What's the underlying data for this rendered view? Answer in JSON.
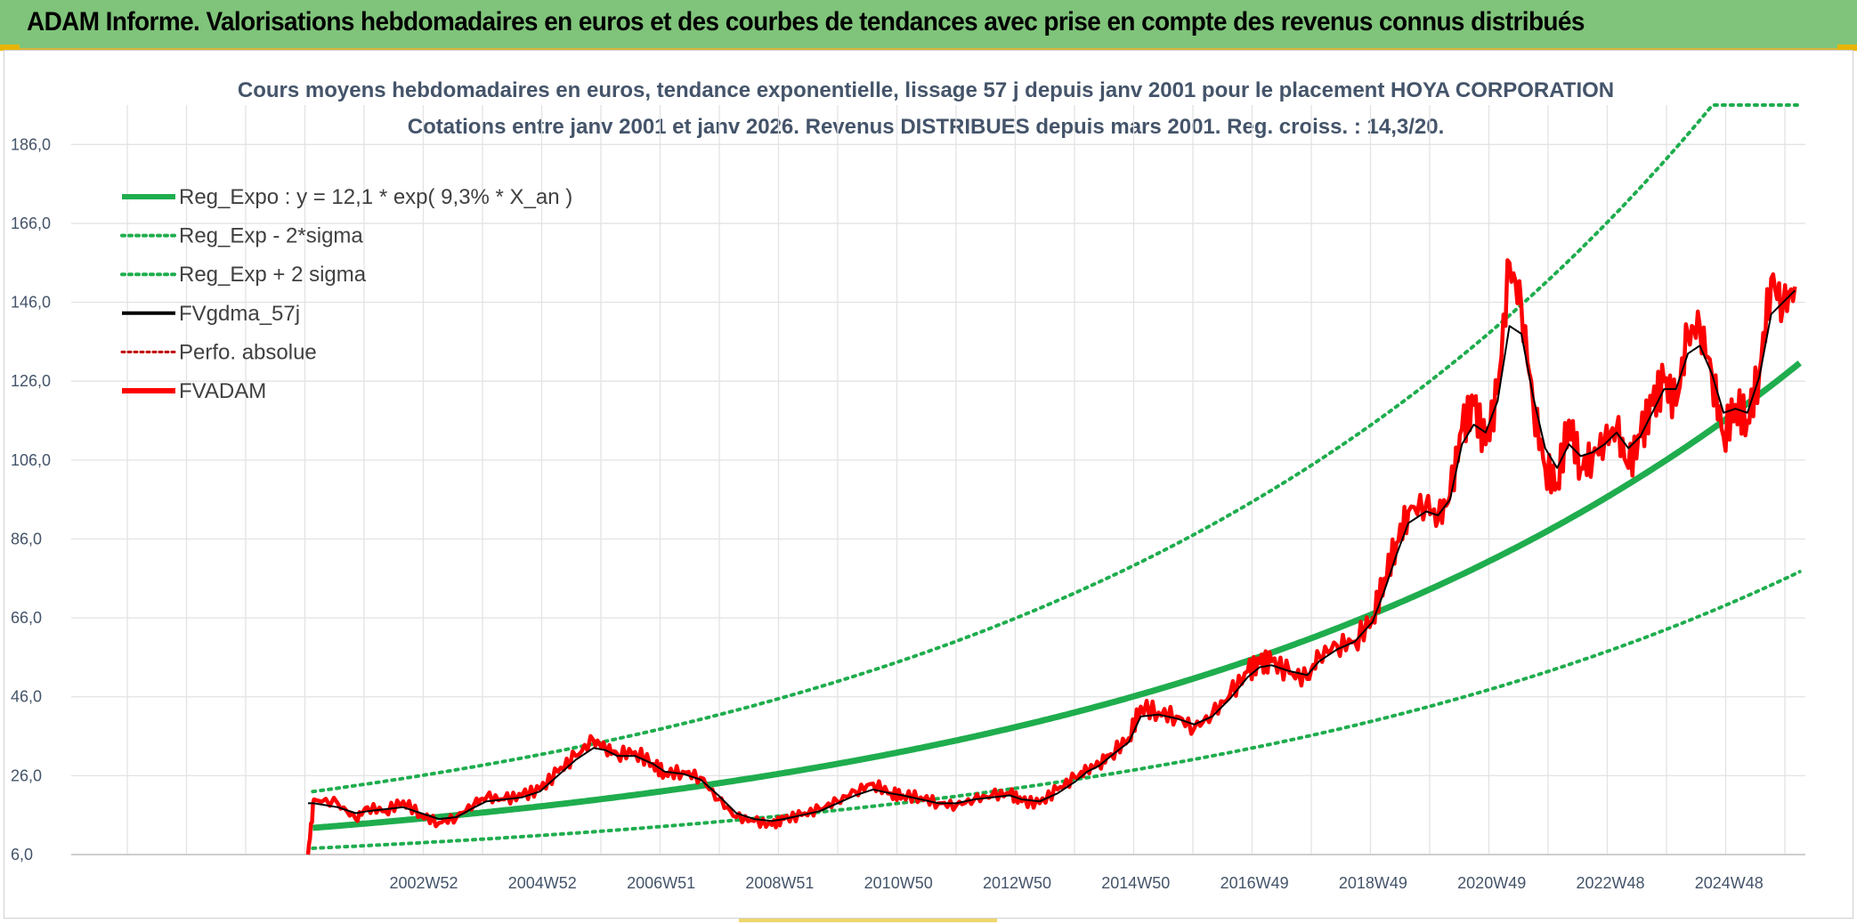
{
  "banner": {
    "title": "ADAM Informe. Valorisations hebdomadaires en euros et des courbes de tendances avec prise en compte des revenus connus distribués"
  },
  "colors": {
    "banner_bg": "#7fc47a",
    "reg_green": "#1fad4e",
    "smooth_black": "#000000",
    "price_red": "#ff0000",
    "axis_text": "#44546a"
  },
  "chart_data": {
    "type": "line",
    "title": "Cours moyens hebdomadaires en euros, tendance exponentielle, lissage 57 j depuis janv 2001 pour le placement HOYA CORPORATION",
    "subtitle": "Cotations entre janv 2001 et janv 2026. Revenus DISTRIBUES depuis mars 2001. Reg. croiss. : 14,3/20.",
    "xlabel": "",
    "ylabel": "",
    "ylim": [
      6,
      196
    ],
    "yticks": [
      "6,0",
      "26,0",
      "46,0",
      "66,0",
      "86,0",
      "106,0",
      "126,0",
      "146,0",
      "166,0",
      "186,0"
    ],
    "xticks": [
      "2002W52",
      "2004W52",
      "2006W51",
      "2008W51",
      "2010W50",
      "2012W50",
      "2014W50",
      "2016W49",
      "2018W49",
      "2020W49",
      "2022W48",
      "2024W48"
    ],
    "x_range_years": [
      2001.0,
      2026.1
    ],
    "grid": true,
    "legend_position": "top-left",
    "legend": [
      {
        "label": "Reg_Expo : y = 12,1 * exp( 9,3% *  X_an )",
        "style": "thick-solid",
        "color": "#1fad4e"
      },
      {
        "label": "Reg_Exp - 2*sigma",
        "style": "dotted",
        "color": "#1fad4e"
      },
      {
        "label": "Reg_Exp + 2 sigma",
        "style": "dotted",
        "color": "#1fad4e"
      },
      {
        "label": "FVgdma_57j",
        "style": "solid",
        "color": "#000000"
      },
      {
        "label": "Perfo. absolue",
        "style": "dotted",
        "color": "#c00000"
      },
      {
        "label": "FVADAM",
        "style": "thick-solid",
        "color": "#ff0000"
      }
    ],
    "regression": {
      "a": 12.1,
      "rate": 0.093,
      "upper_factor": 1.72,
      "lower_factor": 0.595,
      "cap": 196
    },
    "series": [
      {
        "name": "FVADAM",
        "x": [
          2001.0,
          2001.1,
          2001.5,
          2001.8,
          2002.0,
          2002.3,
          2002.6,
          2002.9,
          2003.2,
          2003.5,
          2003.8,
          2004.0,
          2004.3,
          2004.6,
          2004.9,
          2005.2,
          2005.5,
          2005.8,
          2006.0,
          2006.2,
          2006.5,
          2006.8,
          2007.0,
          2007.3,
          2007.6,
          2007.9,
          2008.2,
          2008.5,
          2008.8,
          2009.0,
          2009.3,
          2009.6,
          2009.9,
          2010.2,
          2010.5,
          2010.8,
          2011.0,
          2011.3,
          2011.6,
          2011.9,
          2012.2,
          2012.5,
          2012.8,
          2013.0,
          2013.3,
          2013.6,
          2013.9,
          2014.1,
          2014.3,
          2014.5,
          2014.8,
          2015.0,
          2015.3,
          2015.6,
          2015.9,
          2016.2,
          2016.5,
          2016.8,
          2017.0,
          2017.2,
          2017.5,
          2017.8,
          2018.0,
          2018.3,
          2018.6,
          2018.9,
          2019.1,
          2019.3,
          2019.5,
          2019.8,
          2020.0,
          2020.2,
          2020.4,
          2020.6,
          2020.8,
          2021.0,
          2021.2,
          2021.4,
          2021.6,
          2021.8,
          2022.0,
          2022.2,
          2022.4,
          2022.6,
          2022.8,
          2023.0,
          2023.2,
          2023.4,
          2023.6,
          2023.8,
          2024.0,
          2024.2,
          2024.4,
          2024.6,
          2024.8,
          2025.0,
          2025.2,
          2025.4,
          2025.6,
          2025.8,
          2026.0
        ],
        "values": [
          6.0,
          20.0,
          19.0,
          15.0,
          18.0,
          17.0,
          19.5,
          16.0,
          14.0,
          15.5,
          19.0,
          20.5,
          20.0,
          21.0,
          22.5,
          27.0,
          31.0,
          35.0,
          33.0,
          31.5,
          32.0,
          29.0,
          26.5,
          27.0,
          25.5,
          20.0,
          15.5,
          14.5,
          13.5,
          15.0,
          16.0,
          17.5,
          19.5,
          22.0,
          24.0,
          21.5,
          21.0,
          20.5,
          19.0,
          18.5,
          20.0,
          21.0,
          21.5,
          19.5,
          19.0,
          22.5,
          25.5,
          27.5,
          29.0,
          31.5,
          35.5,
          43.5,
          42.0,
          41.0,
          38.0,
          41.5,
          46.5,
          52.5,
          54.5,
          55.0,
          52.0,
          50.5,
          56.5,
          59.0,
          60.0,
          66.0,
          76.0,
          85.0,
          93.0,
          95.0,
          91.0,
          97.0,
          114.0,
          120.0,
          110.0,
          123.0,
          156.0,
          145.0,
          120.0,
          104.0,
          100.0,
          116.0,
          104.0,
          107.0,
          111.0,
          114.0,
          104.0,
          112.0,
          120.0,
          126.0,
          120.0,
          138.0,
          140.0,
          128.0,
          112.0,
          120.0,
          116.0,
          128.0,
          152.0,
          145.0,
          150.0
        ]
      },
      {
        "name": "FVgdma_57j",
        "x": [
          2001.0,
          2001.1,
          2001.5,
          2001.8,
          2002.0,
          2002.3,
          2002.6,
          2002.9,
          2003.2,
          2003.5,
          2003.8,
          2004.0,
          2004.3,
          2004.6,
          2004.9,
          2005.2,
          2005.5,
          2005.8,
          2006.0,
          2006.2,
          2006.5,
          2006.8,
          2007.0,
          2007.3,
          2007.6,
          2007.9,
          2008.2,
          2008.5,
          2008.8,
          2009.0,
          2009.3,
          2009.6,
          2009.9,
          2010.2,
          2010.5,
          2010.8,
          2011.0,
          2011.3,
          2011.6,
          2011.9,
          2012.2,
          2012.5,
          2012.8,
          2013.0,
          2013.3,
          2013.6,
          2013.9,
          2014.1,
          2014.3,
          2014.5,
          2014.8,
          2015.0,
          2015.3,
          2015.6,
          2015.9,
          2016.2,
          2016.5,
          2016.8,
          2017.0,
          2017.2,
          2017.5,
          2017.8,
          2018.0,
          2018.3,
          2018.6,
          2018.9,
          2019.1,
          2019.3,
          2019.5,
          2019.8,
          2020.0,
          2020.2,
          2020.4,
          2020.6,
          2020.8,
          2021.0,
          2021.2,
          2021.4,
          2021.6,
          2021.8,
          2022.0,
          2022.2,
          2022.4,
          2022.6,
          2022.8,
          2023.0,
          2023.2,
          2023.4,
          2023.6,
          2023.8,
          2024.0,
          2024.2,
          2024.4,
          2024.6,
          2024.8,
          2025.0,
          2025.2,
          2025.4,
          2025.6,
          2025.8,
          2026.0
        ],
        "values": [
          19.0,
          19.0,
          18.0,
          16.5,
          17.0,
          17.5,
          18.0,
          16.5,
          15.0,
          15.5,
          18.0,
          19.5,
          20.0,
          20.5,
          22.0,
          26.0,
          30.0,
          33.0,
          32.5,
          31.0,
          31.0,
          29.0,
          27.0,
          26.5,
          25.0,
          21.0,
          16.5,
          15.0,
          14.5,
          15.0,
          16.0,
          17.0,
          19.0,
          21.0,
          22.5,
          21.5,
          21.0,
          20.0,
          19.0,
          19.0,
          20.0,
          20.5,
          21.0,
          20.0,
          19.5,
          21.5,
          24.5,
          27.0,
          28.5,
          31.0,
          34.5,
          41.0,
          41.5,
          40.5,
          39.0,
          41.0,
          45.5,
          51.0,
          53.5,
          54.0,
          52.5,
          51.5,
          55.0,
          58.0,
          60.0,
          65.0,
          73.0,
          82.0,
          90.0,
          93.0,
          92.0,
          96.0,
          110.0,
          115.0,
          113.0,
          121.0,
          140.0,
          138.0,
          122.0,
          109.0,
          104.0,
          110.0,
          107.0,
          108.0,
          110.0,
          113.0,
          109.0,
          112.0,
          118.0,
          124.0,
          124.0,
          133.0,
          135.0,
          128.0,
          118.0,
          119.0,
          118.0,
          127.0,
          143.0,
          146.0,
          149.0
        ]
      }
    ]
  }
}
